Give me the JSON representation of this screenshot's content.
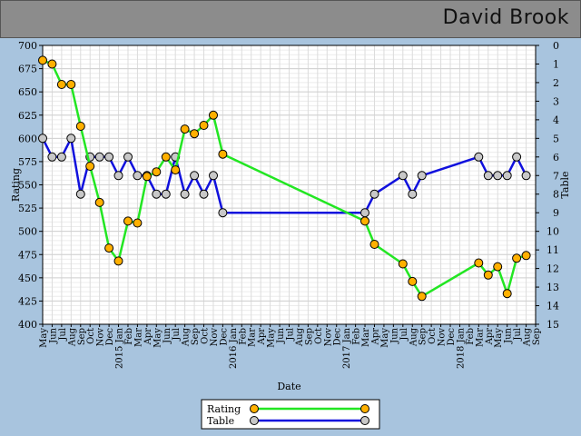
{
  "header": {
    "player_name": "David Brook"
  },
  "chart_data": {
    "type": "line",
    "xlabel": "Date",
    "ylabel_left": "Rating",
    "ylabel_right": "Table",
    "ylim_left": [
      400,
      700
    ],
    "ylim_right_inverted": [
      0,
      15
    ],
    "y_ticks_left": [
      400,
      425,
      450,
      475,
      500,
      525,
      550,
      575,
      600,
      625,
      650,
      675,
      700
    ],
    "y_ticks_right": [
      0,
      1,
      2,
      3,
      4,
      5,
      6,
      7,
      8,
      9,
      10,
      11,
      12,
      13,
      14,
      15
    ],
    "x_tick_labels": [
      "May",
      "Jun",
      "Jul",
      "Aug",
      "Sep",
      "Oct",
      "Nov",
      "Dec",
      "2015 Jan",
      "Feb",
      "Mar",
      "Apr",
      "May",
      "Jun",
      "Jul",
      "Aug",
      "Sep",
      "Oct",
      "Nov",
      "Dec",
      "2016 Jan",
      "Feb",
      "Mar",
      "Apr",
      "May",
      "Jun",
      "Jul",
      "Aug",
      "Sep",
      "Oct",
      "Nov",
      "Dec",
      "2017 Jan",
      "Feb",
      "Mar",
      "Apr",
      "May",
      "Jun",
      "Jul",
      "Aug",
      "Sep",
      "Oct",
      "Nov",
      "Dec",
      "2018 Jan",
      "Feb",
      "Mar",
      "Apr",
      "May",
      "Jun",
      "Jul",
      "Aug",
      "Sep"
    ],
    "grid": true,
    "legend_position": "bottom-center",
    "series": [
      {
        "name": "Rating",
        "axis": "left",
        "line_color": "#22e622",
        "marker_color": "#ffb000",
        "points": [
          {
            "x": "2014-05-01",
            "y": 684
          },
          {
            "x": "2014-06-01",
            "y": 680
          },
          {
            "x": "2014-07-01",
            "y": 658
          },
          {
            "x": "2014-08-01",
            "y": 658
          },
          {
            "x": "2014-09-01",
            "y": 613
          },
          {
            "x": "2014-10-01",
            "y": 570
          },
          {
            "x": "2014-11-01",
            "y": 531
          },
          {
            "x": "2014-12-01",
            "y": 482
          },
          {
            "x": "2015-01-01",
            "y": 468
          },
          {
            "x": "2015-02-01",
            "y": 511
          },
          {
            "x": "2015-03-01",
            "y": 509
          },
          {
            "x": "2015-04-01",
            "y": 559
          },
          {
            "x": "2015-05-01",
            "y": 564
          },
          {
            "x": "2015-06-01",
            "y": 580
          },
          {
            "x": "2015-07-01",
            "y": 566
          },
          {
            "x": "2015-08-01",
            "y": 610
          },
          {
            "x": "2015-09-01",
            "y": 605
          },
          {
            "x": "2015-10-01",
            "y": 614
          },
          {
            "x": "2015-11-01",
            "y": 625
          },
          {
            "x": "2015-12-01",
            "y": 583
          },
          {
            "x": "2017-03-01",
            "y": 511
          },
          {
            "x": "2017-04-01",
            "y": 486
          },
          {
            "x": "2017-07-01",
            "y": 465
          },
          {
            "x": "2017-08-01",
            "y": 446
          },
          {
            "x": "2017-09-01",
            "y": 430
          },
          {
            "x": "2018-03-01",
            "y": 466
          },
          {
            "x": "2018-04-01",
            "y": 453
          },
          {
            "x": "2018-05-01",
            "y": 462
          },
          {
            "x": "2018-06-01",
            "y": 433
          },
          {
            "x": "2018-07-01",
            "y": 471
          },
          {
            "x": "2018-08-01",
            "y": 474
          }
        ]
      },
      {
        "name": "Table",
        "axis": "right",
        "line_color": "#1010dd",
        "marker_color": "#c8c8c8",
        "points": [
          {
            "x": "2014-05-01",
            "y": 5
          },
          {
            "x": "2014-06-01",
            "y": 6
          },
          {
            "x": "2014-07-01",
            "y": 6
          },
          {
            "x": "2014-08-01",
            "y": 5
          },
          {
            "x": "2014-09-01",
            "y": 8
          },
          {
            "x": "2014-10-01",
            "y": 6
          },
          {
            "x": "2014-11-01",
            "y": 6
          },
          {
            "x": "2014-12-01",
            "y": 6
          },
          {
            "x": "2015-01-01",
            "y": 7
          },
          {
            "x": "2015-02-01",
            "y": 6
          },
          {
            "x": "2015-03-01",
            "y": 7
          },
          {
            "x": "2015-04-01",
            "y": 7
          },
          {
            "x": "2015-05-01",
            "y": 8
          },
          {
            "x": "2015-06-01",
            "y": 8
          },
          {
            "x": "2015-07-01",
            "y": 6
          },
          {
            "x": "2015-08-01",
            "y": 8
          },
          {
            "x": "2015-09-01",
            "y": 7
          },
          {
            "x": "2015-10-01",
            "y": 8
          },
          {
            "x": "2015-11-01",
            "y": 7
          },
          {
            "x": "2015-12-01",
            "y": 9
          },
          {
            "x": "2017-03-01",
            "y": 9
          },
          {
            "x": "2017-04-01",
            "y": 8
          },
          {
            "x": "2017-07-01",
            "y": 7
          },
          {
            "x": "2017-08-01",
            "y": 8
          },
          {
            "x": "2017-09-01",
            "y": 7
          },
          {
            "x": "2018-03-01",
            "y": 6
          },
          {
            "x": "2018-04-01",
            "y": 7
          },
          {
            "x": "2018-05-01",
            "y": 7
          },
          {
            "x": "2018-06-01",
            "y": 7
          },
          {
            "x": "2018-07-01",
            "y": 6
          },
          {
            "x": "2018-08-01",
            "y": 7
          }
        ]
      }
    ]
  }
}
